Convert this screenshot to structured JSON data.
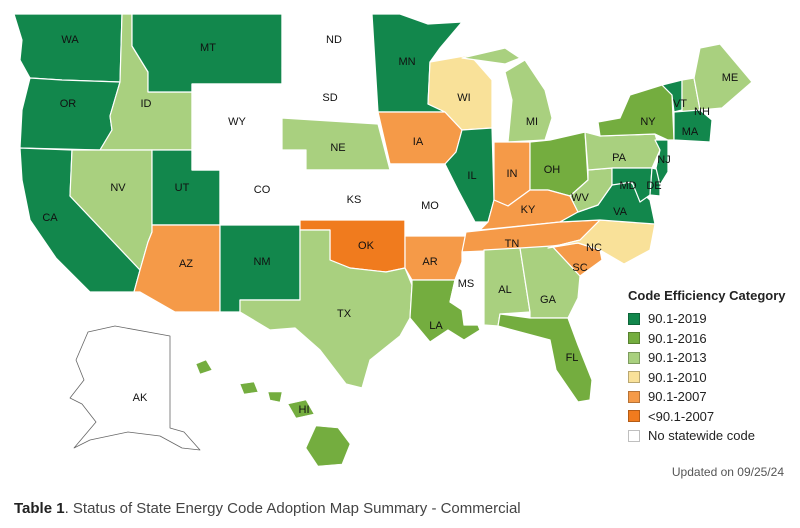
{
  "colors": {
    "c2019": "#12874c",
    "c2016": "#74ad3f",
    "c2013": "#a9d07f",
    "c2010": "#f9e199",
    "c2007": "#f59a48",
    "c_lt2007": "#f07b1e",
    "none": "#ffffff"
  },
  "legend": {
    "title": "Code Efficiency Category",
    "items": [
      {
        "label": "90.1-2019",
        "color": "#12874c"
      },
      {
        "label": "90.1-2016",
        "color": "#74ad3f"
      },
      {
        "label": "90.1-2013",
        "color": "#a9d07f"
      },
      {
        "label": "90.1-2010",
        "color": "#f9e199"
      },
      {
        "label": "90.1-2007",
        "color": "#f59a48"
      },
      {
        "label": "<90.1-2007",
        "color": "#f07b1e"
      },
      {
        "label": "No statewide code",
        "color": "#ffffff"
      }
    ]
  },
  "updated": "Updated on 09/25/24",
  "caption": {
    "prefix": "Table 1",
    "text": ". Status of State Energy Code Adoption Map Summary - Commercial"
  },
  "states": {
    "WA": {
      "label": "WA",
      "category": "90.1-2019"
    },
    "OR": {
      "label": "OR",
      "category": "90.1-2019"
    },
    "CA": {
      "label": "CA",
      "category": "90.1-2019"
    },
    "MT": {
      "label": "MT",
      "category": "90.1-2019"
    },
    "ID": {
      "label": "ID",
      "category": "90.1-2013"
    },
    "NV": {
      "label": "NV",
      "category": "90.1-2013"
    },
    "UT": {
      "label": "UT",
      "category": "90.1-2019"
    },
    "AZ": {
      "label": "AZ",
      "category": "90.1-2007"
    },
    "WY": {
      "label": "WY",
      "category": "No statewide code"
    },
    "CO": {
      "label": "CO",
      "category": "No statewide code"
    },
    "NM": {
      "label": "NM",
      "category": "90.1-2019"
    },
    "ND": {
      "label": "ND",
      "category": "No statewide code"
    },
    "SD": {
      "label": "SD",
      "category": "No statewide code"
    },
    "NE": {
      "label": "NE",
      "category": "90.1-2013"
    },
    "KS": {
      "label": "KS",
      "category": "No statewide code"
    },
    "OK": {
      "label": "OK",
      "category": "<90.1-2007"
    },
    "TX": {
      "label": "TX",
      "category": "90.1-2013"
    },
    "MN": {
      "label": "MN",
      "category": "90.1-2019"
    },
    "IA": {
      "label": "IA",
      "category": "90.1-2007"
    },
    "MO": {
      "label": "MO",
      "category": "No statewide code"
    },
    "AR": {
      "label": "AR",
      "category": "90.1-2007"
    },
    "LA": {
      "label": "LA",
      "category": "90.1-2016"
    },
    "WI": {
      "label": "WI",
      "category": "90.1-2010"
    },
    "IL": {
      "label": "IL",
      "category": "90.1-2019"
    },
    "MI": {
      "label": "MI",
      "category": "90.1-2013"
    },
    "IN": {
      "label": "IN",
      "category": "90.1-2007"
    },
    "OH": {
      "label": "OH",
      "category": "90.1-2016"
    },
    "KY": {
      "label": "KY",
      "category": "90.1-2007"
    },
    "TN": {
      "label": "TN",
      "category": "90.1-2007"
    },
    "MS": {
      "label": "MS",
      "category": "No statewide code"
    },
    "AL": {
      "label": "AL",
      "category": "90.1-2013"
    },
    "GA": {
      "label": "GA",
      "category": "90.1-2013"
    },
    "FL": {
      "label": "FL",
      "category": "90.1-2016"
    },
    "SC": {
      "label": "SC",
      "category": "90.1-2007"
    },
    "NC": {
      "label": "NC",
      "category": "90.1-2010"
    },
    "VA": {
      "label": "VA",
      "category": "90.1-2019"
    },
    "WV": {
      "label": "WV",
      "category": "90.1-2013"
    },
    "PA": {
      "label": "PA",
      "category": "90.1-2013"
    },
    "NY": {
      "label": "NY",
      "category": "90.1-2016"
    },
    "VT": {
      "label": "VT",
      "category": "90.1-2019"
    },
    "NH": {
      "label": "NH",
      "category": "90.1-2013"
    },
    "ME": {
      "label": "ME",
      "category": "90.1-2013"
    },
    "MA": {
      "label": "MA",
      "category": "90.1-2019"
    },
    "NJ": {
      "label": "NJ",
      "category": "90.1-2019"
    },
    "MD": {
      "label": "MD",
      "category": "90.1-2019"
    },
    "DE": {
      "label": "DE",
      "category": "90.1-2019"
    },
    "AK": {
      "label": "AK",
      "category": "No statewide code"
    },
    "HI": {
      "label": "HI",
      "category": "90.1-2016"
    }
  }
}
